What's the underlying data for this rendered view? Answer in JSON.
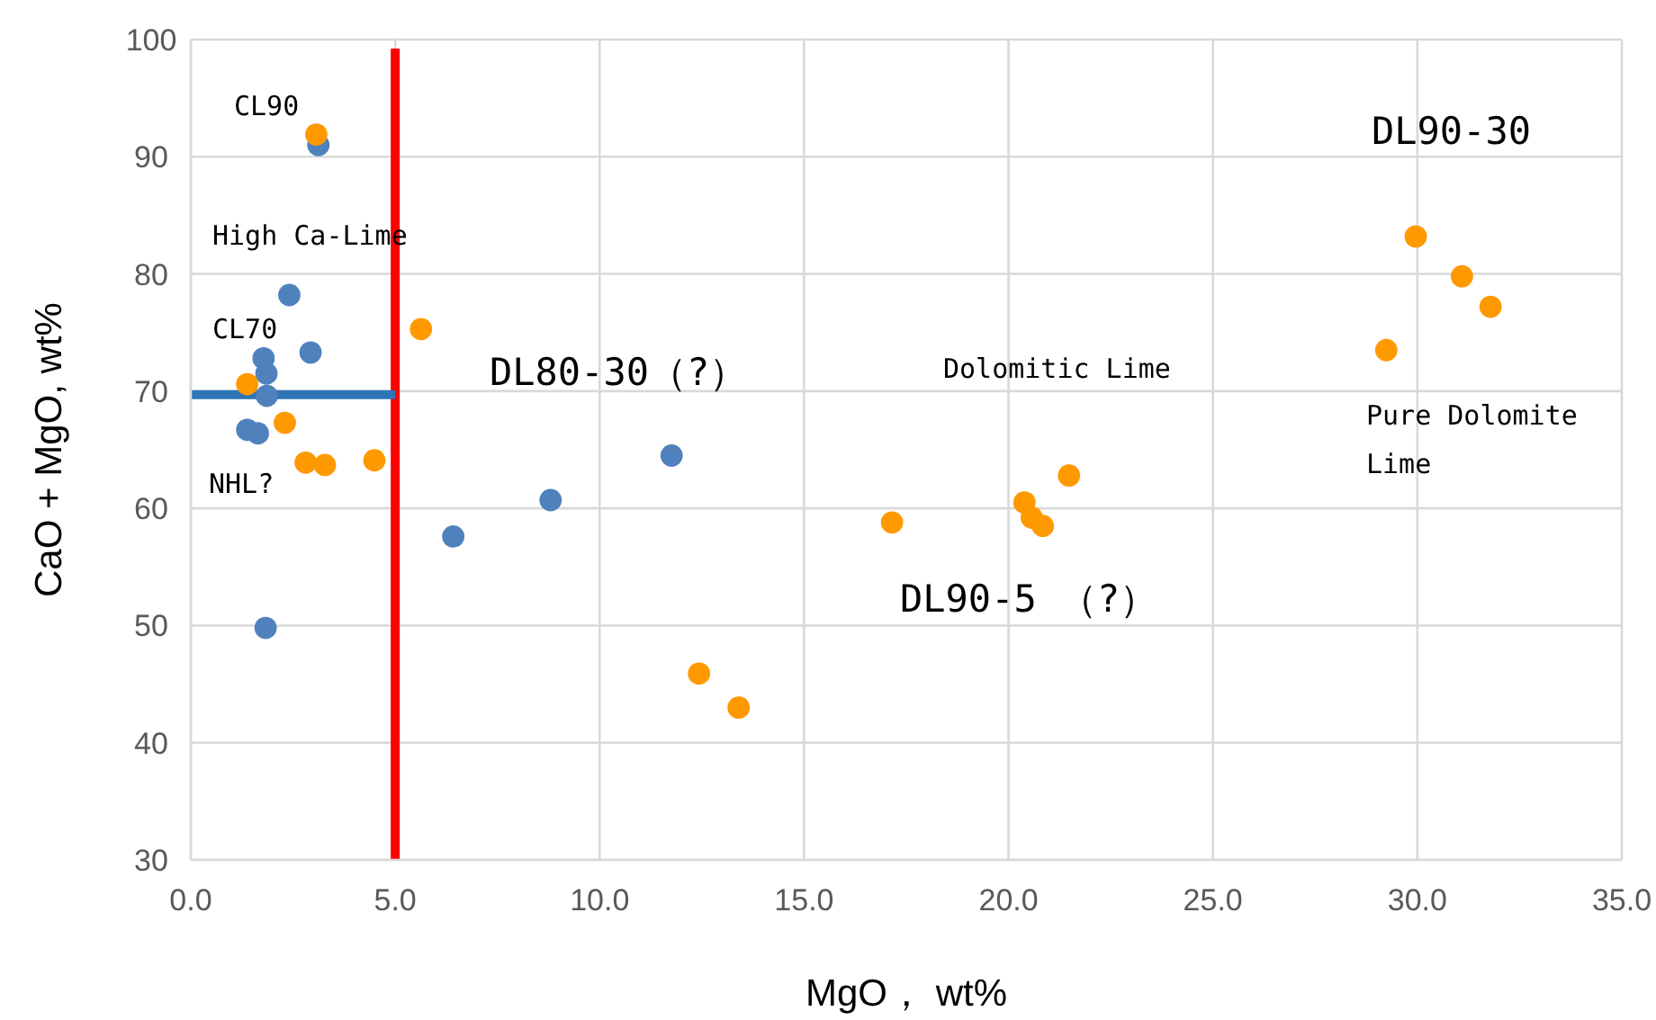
{
  "chart_data": {
    "type": "scatter",
    "xlabel": "MgO， wt%",
    "ylabel": "CaO + MgO, wt%",
    "xlim": [
      0,
      35
    ],
    "ylim": [
      30,
      100
    ],
    "xticks": [
      {
        "value": 0,
        "label": "0.0"
      },
      {
        "value": 5,
        "label": "5.0"
      },
      {
        "value": 10,
        "label": "10.0"
      },
      {
        "value": 15,
        "label": "15.0"
      },
      {
        "value": 20,
        "label": "20.0"
      },
      {
        "value": 25,
        "label": "25.0"
      },
      {
        "value": 30,
        "label": "30.0"
      },
      {
        "value": 35,
        "label": "35.0"
      }
    ],
    "yticks": [
      30,
      40,
      50,
      60,
      70,
      80,
      90,
      100
    ],
    "grid": true,
    "series": [
      {
        "color": "#4f81bd",
        "marker": "circle",
        "x": [
          3.12,
          2.41,
          2.93,
          1.78,
          1.85,
          1.86,
          1.38,
          1.64,
          6.42,
          1.83,
          8.8,
          11.76
        ],
        "values": [
          91.0,
          78.2,
          73.3,
          72.8,
          71.5,
          69.6,
          66.7,
          66.4,
          57.6,
          49.8,
          60.7,
          64.5
        ]
      },
      {
        "color": "#ff9900",
        "marker": "circle",
        "x": [
          3.07,
          5.63,
          1.38,
          2.3,
          2.81,
          3.28,
          4.49,
          12.43,
          13.4,
          17.15,
          20.39,
          20.57,
          20.84,
          21.48,
          29.96,
          31.09,
          31.79,
          29.24
        ],
        "values": [
          91.9,
          75.3,
          70.6,
          67.3,
          63.9,
          63.7,
          64.1,
          45.9,
          43.0,
          58.8,
          60.5,
          59.2,
          58.5,
          62.8,
          83.2,
          79.8,
          77.2,
          73.5
        ]
      },
      {
        "type": "line",
        "color": "#2e75b6",
        "x": [
          0,
          5
        ],
        "values": [
          69.7,
          69.7
        ]
      }
    ],
    "ref_lines": [
      {
        "axis": "x",
        "value": 5,
        "color": "#ff0000"
      }
    ],
    "annotations": [
      "CL90",
      "High Ca-Lime",
      "CL70",
      "NHL?",
      "DL80-30（?）",
      "Dolomitic Lime",
      "DL90-5 （?）",
      "DL90-30",
      "Pure Dolomite\nLime"
    ]
  }
}
